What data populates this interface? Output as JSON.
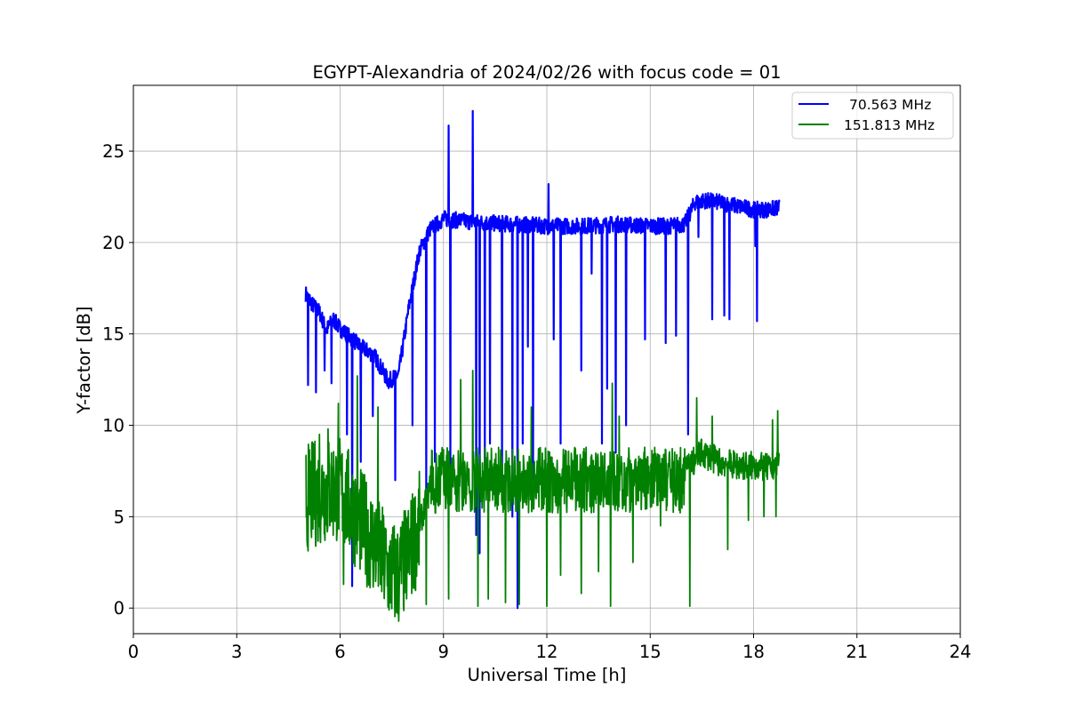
{
  "chart_data": {
    "type": "line",
    "title": "EGYPT-Alexandria of 2024/02/26 with focus code = 01",
    "xlabel": "Universal Time [h]",
    "ylabel": "Y-factor [dB]",
    "xlim": [
      0,
      24
    ],
    "ylim": [
      -1.4,
      28.6
    ],
    "xticks": [
      0,
      3,
      6,
      9,
      12,
      15,
      18,
      21,
      24
    ],
    "yticks": [
      0,
      5,
      10,
      15,
      20,
      25
    ],
    "grid": true,
    "legend_position": "top-right",
    "series": [
      {
        "name": "70.563 MHz",
        "color": "#0000ff",
        "x": [
          5.0,
          5.2,
          5.4,
          5.6,
          5.8,
          6.0,
          6.3,
          6.6,
          7.0,
          7.4,
          7.7,
          8.0,
          8.3,
          8.6,
          9.0,
          9.5,
          10.0,
          11.0,
          12.0,
          13.0,
          14.0,
          15.0,
          15.5,
          16.0,
          16.3,
          16.6,
          17.0,
          17.5,
          18.0,
          18.4,
          18.75
        ],
        "values": [
          17.2,
          16.6,
          16.2,
          15.2,
          15.8,
          15.3,
          14.8,
          14.3,
          13.8,
          12.4,
          12.8,
          16.5,
          19.5,
          20.7,
          21.3,
          21.2,
          21.1,
          21.0,
          20.9,
          20.9,
          21.0,
          20.9,
          20.9,
          21.0,
          22.2,
          22.3,
          22.2,
          22.0,
          21.8,
          21.8,
          21.9
        ],
        "spikes": [
          {
            "x": 5.07,
            "y": 12.2
          },
          {
            "x": 5.3,
            "y": 11.8
          },
          {
            "x": 5.55,
            "y": 13.0
          },
          {
            "x": 5.75,
            "y": 12.3
          },
          {
            "x": 6.2,
            "y": 9.5
          },
          {
            "x": 6.35,
            "y": 1.2
          },
          {
            "x": 6.6,
            "y": 8.0
          },
          {
            "x": 6.95,
            "y": 10.5
          },
          {
            "x": 7.6,
            "y": 7.0
          },
          {
            "x": 8.1,
            "y": 10.0
          },
          {
            "x": 8.5,
            "y": 6.0
          },
          {
            "x": 8.75,
            "y": 8.0
          },
          {
            "x": 9.15,
            "y": 26.4
          },
          {
            "x": 9.2,
            "y": 7.0
          },
          {
            "x": 9.85,
            "y": 27.2
          },
          {
            "x": 9.95,
            "y": 4.0
          },
          {
            "x": 10.05,
            "y": 3.0
          },
          {
            "x": 10.2,
            "y": 8.0
          },
          {
            "x": 10.35,
            "y": 9.0
          },
          {
            "x": 10.7,
            "y": 7.0
          },
          {
            "x": 11.0,
            "y": 5.0
          },
          {
            "x": 11.15,
            "y": 0.0
          },
          {
            "x": 11.3,
            "y": 9.0
          },
          {
            "x": 11.45,
            "y": 14.3
          },
          {
            "x": 11.6,
            "y": 7.0
          },
          {
            "x": 12.05,
            "y": 23.2
          },
          {
            "x": 12.2,
            "y": 14.7
          },
          {
            "x": 12.4,
            "y": 9.0
          },
          {
            "x": 13.0,
            "y": 13.0
          },
          {
            "x": 13.3,
            "y": 18.3
          },
          {
            "x": 13.6,
            "y": 9.0
          },
          {
            "x": 13.75,
            "y": 12.0
          },
          {
            "x": 14.0,
            "y": 8.5
          },
          {
            "x": 14.3,
            "y": 10.0
          },
          {
            "x": 14.85,
            "y": 14.7
          },
          {
            "x": 15.45,
            "y": 14.5
          },
          {
            "x": 15.75,
            "y": 14.9
          },
          {
            "x": 16.1,
            "y": 9.5
          },
          {
            "x": 16.4,
            "y": 20.3
          },
          {
            "x": 16.8,
            "y": 15.8
          },
          {
            "x": 17.15,
            "y": 16.0
          },
          {
            "x": 17.3,
            "y": 15.8
          },
          {
            "x": 18.05,
            "y": 19.8
          },
          {
            "x": 18.1,
            "y": 15.7
          }
        ]
      },
      {
        "name": "151.813 MHz",
        "color": "#008000",
        "x": [
          5.0,
          5.5,
          6.0,
          6.5,
          7.0,
          7.4,
          7.7,
          8.0,
          8.3,
          8.6,
          9.0,
          10.0,
          11.0,
          12.0,
          13.0,
          14.0,
          15.0,
          16.0,
          16.5,
          17.0,
          17.5,
          18.0,
          18.5,
          18.75
        ],
        "values": [
          6.0,
          6.5,
          6.5,
          5.0,
          3.5,
          2.0,
          1.8,
          3.0,
          4.5,
          6.5,
          7.5,
          7.3,
          7.0,
          7.0,
          7.0,
          7.2,
          7.2,
          7.5,
          8.5,
          8.0,
          7.8,
          7.8,
          7.6,
          8.3
        ],
        "band": {
          "low": 5.2,
          "high": 8.8,
          "from": 8.6,
          "to": 16.0
        },
        "spikes": [
          {
            "x": 5.05,
            "y": 3.4
          },
          {
            "x": 5.4,
            "y": 9.5
          },
          {
            "x": 5.65,
            "y": 9.8
          },
          {
            "x": 5.95,
            "y": 11.2
          },
          {
            "x": 6.1,
            "y": 1.3
          },
          {
            "x": 6.5,
            "y": 12.7
          },
          {
            "x": 7.1,
            "y": 11.0
          },
          {
            "x": 7.45,
            "y": 0.3
          },
          {
            "x": 8.5,
            "y": 0.2
          },
          {
            "x": 9.15,
            "y": 0.5
          },
          {
            "x": 9.5,
            "y": 12.5
          },
          {
            "x": 9.85,
            "y": 13.0
          },
          {
            "x": 10.0,
            "y": 0.1
          },
          {
            "x": 10.3,
            "y": 0.5
          },
          {
            "x": 10.8,
            "y": 0.3
          },
          {
            "x": 11.2,
            "y": 0.2
          },
          {
            "x": 11.55,
            "y": 11.0
          },
          {
            "x": 12.0,
            "y": 0.1
          },
          {
            "x": 12.4,
            "y": 1.8
          },
          {
            "x": 13.0,
            "y": 0.8
          },
          {
            "x": 13.5,
            "y": 2.0
          },
          {
            "x": 13.85,
            "y": 0.1
          },
          {
            "x": 13.9,
            "y": 12.3
          },
          {
            "x": 14.1,
            "y": 10.5
          },
          {
            "x": 14.5,
            "y": 2.5
          },
          {
            "x": 15.3,
            "y": 4.5
          },
          {
            "x": 16.15,
            "y": 0.1
          },
          {
            "x": 16.35,
            "y": 11.5
          },
          {
            "x": 16.8,
            "y": 10.5
          },
          {
            "x": 17.25,
            "y": 3.2
          },
          {
            "x": 17.85,
            "y": 4.8
          },
          {
            "x": 18.3,
            "y": 5.0
          },
          {
            "x": 18.55,
            "y": 10.3
          },
          {
            "x": 18.65,
            "y": 5.0
          },
          {
            "x": 18.7,
            "y": 10.8
          }
        ]
      }
    ]
  }
}
